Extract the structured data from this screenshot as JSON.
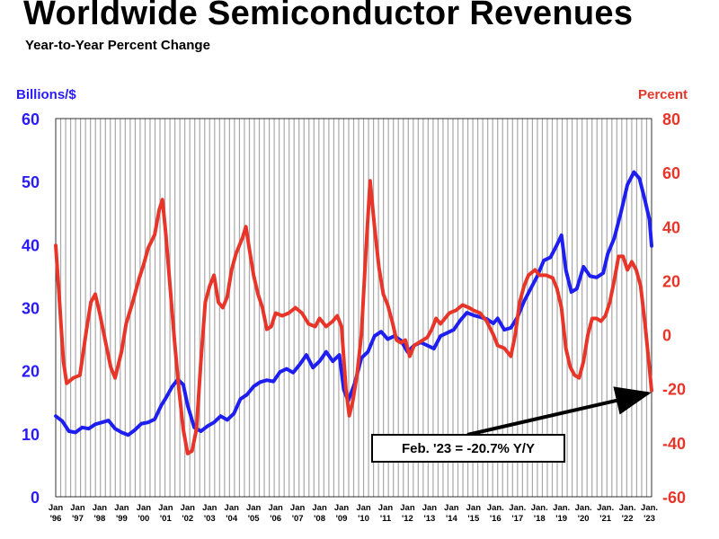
{
  "title": "Worldwide Semiconductor Revenues",
  "subtitle": "Year-to-Year Percent Change",
  "colors": {
    "revenue": "#1f1ef0",
    "percent": "#e8352a",
    "grid": "#a8a8a8",
    "text": "#000000"
  },
  "chart_data": {
    "type": "line",
    "title": "Worldwide Semiconductor Revenues",
    "subtitle": "Year-to-Year Percent Change",
    "y_left": {
      "label": "Billions/$",
      "range": [
        0,
        60
      ],
      "ticks": [
        0,
        10,
        20,
        30,
        40,
        50,
        60
      ]
    },
    "y_right": {
      "label": "Percent",
      "range": [
        -60,
        80
      ],
      "ticks": [
        -60,
        -40,
        -20,
        0,
        20,
        40,
        60,
        80
      ]
    },
    "x_axis": {
      "range": [
        1996.0,
        2023.1
      ],
      "ticks": [
        {
          "x": 1996,
          "line1": "Jan",
          "line2": "'96"
        },
        {
          "x": 1997,
          "line1": "Jan",
          "line2": "'97"
        },
        {
          "x": 1998,
          "line1": "Jan",
          "line2": "'98"
        },
        {
          "x": 1999,
          "line1": "Jan",
          "line2": "'99"
        },
        {
          "x": 2000,
          "line1": "Jan",
          "line2": "'00"
        },
        {
          "x": 2001,
          "line1": "Jan",
          "line2": "'01"
        },
        {
          "x": 2002,
          "line1": "Jan",
          "line2": "'02"
        },
        {
          "x": 2003,
          "line1": "Jan",
          "line2": "'03"
        },
        {
          "x": 2004,
          "line1": "Jan",
          "line2": "'04"
        },
        {
          "x": 2005,
          "line1": "Jan",
          "line2": "'05"
        },
        {
          "x": 2006,
          "line1": "Jan",
          "line2": "'06"
        },
        {
          "x": 2007,
          "line1": "Jan",
          "line2": "'07"
        },
        {
          "x": 2008,
          "line1": "Jan",
          "line2": "'08"
        },
        {
          "x": 2009,
          "line1": "Jan",
          "line2": "'09"
        },
        {
          "x": 2010,
          "line1": "Jan",
          "line2": "'10"
        },
        {
          "x": 2011,
          "line1": "Jan",
          "line2": "'11"
        },
        {
          "x": 2012,
          "line1": "Jan",
          "line2": "'12"
        },
        {
          "x": 2013,
          "line1": "Jan",
          "line2": "'13"
        },
        {
          "x": 2014,
          "line1": "Jan",
          "line2": "'14"
        },
        {
          "x": 2015,
          "line1": "Jan",
          "line2": "'15"
        },
        {
          "x": 2016,
          "line1": "Jan.",
          "line2": "'16"
        },
        {
          "x": 2017,
          "line1": "Jan.",
          "line2": "'17"
        },
        {
          "x": 2018,
          "line1": "Jan.",
          "line2": "'18"
        },
        {
          "x": 2019,
          "line1": "Jan.",
          "line2": "'19"
        },
        {
          "x": 2020,
          "line1": "Jan.",
          "line2": "'20"
        },
        {
          "x": 2021,
          "line1": "Jan.",
          "line2": "'21"
        },
        {
          "x": 2022,
          "line1": "Jan.",
          "line2": "'22"
        },
        {
          "x": 2023,
          "line1": "Jan.",
          "line2": "'23"
        }
      ]
    },
    "series": [
      {
        "name": "Revenue (Billions/$)",
        "axis": "left",
        "color": "#1f1ef0",
        "points": [
          [
            1996.0,
            12.8
          ],
          [
            1996.3,
            12.0
          ],
          [
            1996.6,
            10.4
          ],
          [
            1996.9,
            10.2
          ],
          [
            1997.2,
            11.0
          ],
          [
            1997.5,
            10.8
          ],
          [
            1997.8,
            11.5
          ],
          [
            1998.1,
            11.8
          ],
          [
            1998.4,
            12.1
          ],
          [
            1998.7,
            10.8
          ],
          [
            1999.0,
            10.2
          ],
          [
            1999.3,
            9.8
          ],
          [
            1999.6,
            10.6
          ],
          [
            1999.9,
            11.6
          ],
          [
            2000.2,
            11.8
          ],
          [
            2000.5,
            12.3
          ],
          [
            2000.8,
            14.5
          ],
          [
            2001.0,
            15.6
          ],
          [
            2001.3,
            17.5
          ],
          [
            2001.55,
            18.6
          ],
          [
            2001.8,
            17.8
          ],
          [
            2002.0,
            14.5
          ],
          [
            2002.3,
            11.0
          ],
          [
            2002.6,
            10.4
          ],
          [
            2002.9,
            11.2
          ],
          [
            2003.2,
            11.8
          ],
          [
            2003.5,
            12.8
          ],
          [
            2003.8,
            12.2
          ],
          [
            2004.1,
            13.2
          ],
          [
            2004.4,
            15.5
          ],
          [
            2004.7,
            16.2
          ],
          [
            2005.0,
            17.5
          ],
          [
            2005.3,
            18.2
          ],
          [
            2005.6,
            18.5
          ],
          [
            2005.9,
            18.3
          ],
          [
            2006.2,
            19.8
          ],
          [
            2006.5,
            20.3
          ],
          [
            2006.8,
            19.7
          ],
          [
            2007.1,
            21.0
          ],
          [
            2007.4,
            22.5
          ],
          [
            2007.7,
            20.5
          ],
          [
            2008.0,
            21.5
          ],
          [
            2008.3,
            23.0
          ],
          [
            2008.6,
            21.5
          ],
          [
            2008.9,
            22.5
          ],
          [
            2009.1,
            17.0
          ],
          [
            2009.3,
            15.2
          ],
          [
            2009.6,
            18.0
          ],
          [
            2009.9,
            22.0
          ],
          [
            2010.2,
            23.0
          ],
          [
            2010.5,
            25.5
          ],
          [
            2010.8,
            26.2
          ],
          [
            2011.1,
            25.0
          ],
          [
            2011.4,
            25.5
          ],
          [
            2011.7,
            24.8
          ],
          [
            2012.0,
            23.0
          ],
          [
            2012.3,
            24.0
          ],
          [
            2012.6,
            24.5
          ],
          [
            2012.9,
            24.0
          ],
          [
            2013.2,
            23.5
          ],
          [
            2013.5,
            25.5
          ],
          [
            2013.8,
            26.0
          ],
          [
            2014.1,
            26.5
          ],
          [
            2014.4,
            28.0
          ],
          [
            2014.7,
            29.2
          ],
          [
            2015.0,
            28.8
          ],
          [
            2015.3,
            28.5
          ],
          [
            2015.6,
            28.2
          ],
          [
            2015.9,
            27.5
          ],
          [
            2016.1,
            28.3
          ],
          [
            2016.4,
            26.5
          ],
          [
            2016.7,
            26.8
          ],
          [
            2017.0,
            28.5
          ],
          [
            2017.3,
            31.0
          ],
          [
            2017.6,
            33.0
          ],
          [
            2017.9,
            35.0
          ],
          [
            2018.2,
            37.5
          ],
          [
            2018.5,
            38.0
          ],
          [
            2018.8,
            40.0
          ],
          [
            2019.0,
            41.5
          ],
          [
            2019.2,
            36.0
          ],
          [
            2019.45,
            32.5
          ],
          [
            2019.7,
            33.0
          ],
          [
            2020.0,
            36.5
          ],
          [
            2020.3,
            35.0
          ],
          [
            2020.6,
            34.8
          ],
          [
            2020.9,
            35.5
          ],
          [
            2021.1,
            38.5
          ],
          [
            2021.4,
            41.0
          ],
          [
            2021.7,
            45.0
          ],
          [
            2022.0,
            49.5
          ],
          [
            2022.3,
            51.5
          ],
          [
            2022.55,
            50.5
          ],
          [
            2022.8,
            47.0
          ],
          [
            2023.0,
            44.0
          ],
          [
            2023.1,
            39.8
          ]
        ]
      },
      {
        "name": "Year-to-Year % Change",
        "axis": "right",
        "color": "#e8352a",
        "points": [
          [
            1996.0,
            33
          ],
          [
            1996.15,
            15
          ],
          [
            1996.35,
            -10
          ],
          [
            1996.5,
            -18
          ],
          [
            1996.8,
            -16
          ],
          [
            1997.1,
            -15
          ],
          [
            1997.4,
            2
          ],
          [
            1997.6,
            12
          ],
          [
            1997.8,
            15
          ],
          [
            1998.0,
            8
          ],
          [
            1998.2,
            0
          ],
          [
            1998.5,
            -12
          ],
          [
            1998.7,
            -16
          ],
          [
            1999.0,
            -6
          ],
          [
            1999.2,
            4
          ],
          [
            1999.5,
            12
          ],
          [
            1999.8,
            21
          ],
          [
            2000.0,
            26
          ],
          [
            2000.2,
            32
          ],
          [
            2000.5,
            37
          ],
          [
            2000.7,
            46
          ],
          [
            2000.85,
            50
          ],
          [
            2001.0,
            38
          ],
          [
            2001.2,
            18
          ],
          [
            2001.4,
            -2
          ],
          [
            2001.6,
            -20
          ],
          [
            2001.8,
            -35
          ],
          [
            2002.0,
            -44
          ],
          [
            2002.2,
            -43
          ],
          [
            2002.4,
            -35
          ],
          [
            2002.6,
            -10
          ],
          [
            2002.8,
            12
          ],
          [
            2003.0,
            18
          ],
          [
            2003.2,
            22
          ],
          [
            2003.4,
            12
          ],
          [
            2003.6,
            10
          ],
          [
            2003.8,
            14
          ],
          [
            2004.0,
            24
          ],
          [
            2004.2,
            30
          ],
          [
            2004.5,
            36
          ],
          [
            2004.65,
            40
          ],
          [
            2004.8,
            32
          ],
          [
            2005.0,
            22
          ],
          [
            2005.2,
            15
          ],
          [
            2005.4,
            10
          ],
          [
            2005.6,
            2
          ],
          [
            2005.8,
            3
          ],
          [
            2006.0,
            8
          ],
          [
            2006.3,
            7
          ],
          [
            2006.6,
            8
          ],
          [
            2006.9,
            10
          ],
          [
            2007.2,
            8
          ],
          [
            2007.5,
            4
          ],
          [
            2007.8,
            3
          ],
          [
            2008.0,
            6
          ],
          [
            2008.3,
            3
          ],
          [
            2008.6,
            5
          ],
          [
            2008.8,
            7
          ],
          [
            2009.0,
            3
          ],
          [
            2009.2,
            -20
          ],
          [
            2009.35,
            -30
          ],
          [
            2009.5,
            -25
          ],
          [
            2009.7,
            -15
          ],
          [
            2009.9,
            0
          ],
          [
            2010.1,
            30
          ],
          [
            2010.3,
            57
          ],
          [
            2010.5,
            40
          ],
          [
            2010.7,
            25
          ],
          [
            2010.9,
            15
          ],
          [
            2011.1,
            11
          ],
          [
            2011.3,
            5
          ],
          [
            2011.5,
            -2
          ],
          [
            2011.7,
            -3
          ],
          [
            2011.9,
            -2
          ],
          [
            2012.1,
            -8
          ],
          [
            2012.3,
            -4
          ],
          [
            2012.5,
            -3
          ],
          [
            2012.7,
            -2
          ],
          [
            2012.9,
            -1
          ],
          [
            2013.1,
            2
          ],
          [
            2013.3,
            6
          ],
          [
            2013.5,
            4
          ],
          [
            2013.7,
            6
          ],
          [
            2013.9,
            8
          ],
          [
            2014.2,
            9
          ],
          [
            2014.5,
            11
          ],
          [
            2014.8,
            10
          ],
          [
            2015.0,
            9
          ],
          [
            2015.3,
            8
          ],
          [
            2015.6,
            5
          ],
          [
            2015.9,
            0
          ],
          [
            2016.1,
            -4
          ],
          [
            2016.4,
            -5
          ],
          [
            2016.7,
            -8
          ],
          [
            2016.9,
            0
          ],
          [
            2017.1,
            12
          ],
          [
            2017.3,
            18
          ],
          [
            2017.5,
            22
          ],
          [
            2017.8,
            24
          ],
          [
            2018.0,
            22
          ],
          [
            2018.3,
            22
          ],
          [
            2018.6,
            21
          ],
          [
            2018.8,
            17
          ],
          [
            2019.0,
            10
          ],
          [
            2019.2,
            -5
          ],
          [
            2019.4,
            -12
          ],
          [
            2019.6,
            -15
          ],
          [
            2019.8,
            -16
          ],
          [
            2020.0,
            -10
          ],
          [
            2020.2,
            0
          ],
          [
            2020.4,
            6
          ],
          [
            2020.6,
            6
          ],
          [
            2020.8,
            5
          ],
          [
            2021.0,
            7
          ],
          [
            2021.2,
            12
          ],
          [
            2021.4,
            20
          ],
          [
            2021.6,
            29
          ],
          [
            2021.8,
            29
          ],
          [
            2022.0,
            24
          ],
          [
            2022.2,
            27
          ],
          [
            2022.4,
            24
          ],
          [
            2022.6,
            18
          ],
          [
            2022.8,
            4
          ],
          [
            2022.95,
            -8
          ],
          [
            2023.1,
            -20.7
          ]
        ]
      }
    ],
    "annotations": [
      {
        "text": "Feb. '23 = -20.7% Y/Y",
        "x": 2023.1,
        "y_percent": -20.7
      }
    ]
  }
}
